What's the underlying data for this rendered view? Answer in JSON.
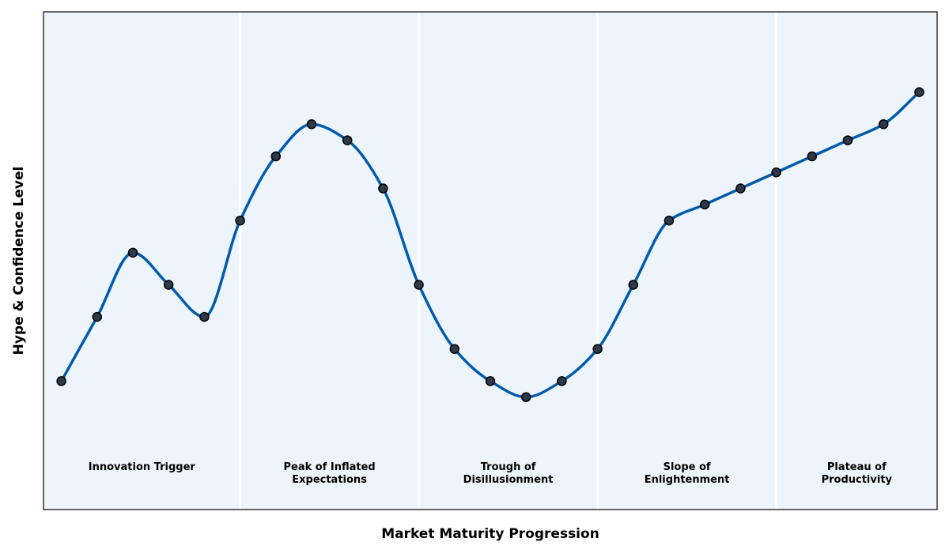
{
  "chart_data": {
    "type": "line",
    "title": "",
    "xlabel": "Market Maturity Progression",
    "ylabel": "Hype & Confidence Level",
    "xlim": [
      -0.5,
      24.5
    ],
    "ylim": [
      -4,
      27
    ],
    "grid": false,
    "legend": "none",
    "colors": {
      "line": "#005BAC",
      "marker_fill": "#2E3A4A",
      "marker_edge": "#000000",
      "phase_fill": "#EEF4FB",
      "phase_divider": "#FFFFFF",
      "frame": "#333333"
    },
    "x": [
      0,
      1,
      2,
      3,
      4,
      5,
      6,
      7,
      8,
      9,
      10,
      11,
      12,
      13,
      14,
      15,
      16,
      17,
      18,
      19,
      20,
      21,
      22,
      23,
      24
    ],
    "values": [
      4,
      8,
      12,
      10,
      8,
      14,
      18,
      20,
      19,
      16,
      10,
      6,
      4,
      3,
      4,
      6,
      10,
      14,
      15,
      16,
      17,
      18,
      19,
      20,
      22
    ],
    "phases": [
      {
        "lines": [
          "Innovation Trigger"
        ],
        "x_start": -0.5,
        "x_end": 5
      },
      {
        "lines": [
          "Peak of Inflated",
          "Expectations"
        ],
        "x_start": 5,
        "x_end": 10
      },
      {
        "lines": [
          "Trough of",
          "Disillusionment"
        ],
        "x_start": 10,
        "x_end": 15
      },
      {
        "lines": [
          "Slope of",
          "Enlightenment"
        ],
        "x_start": 15,
        "x_end": 20
      },
      {
        "lines": [
          "Plateau of",
          "Productivity"
        ],
        "x_start": 20,
        "x_end": 24.5
      }
    ]
  }
}
